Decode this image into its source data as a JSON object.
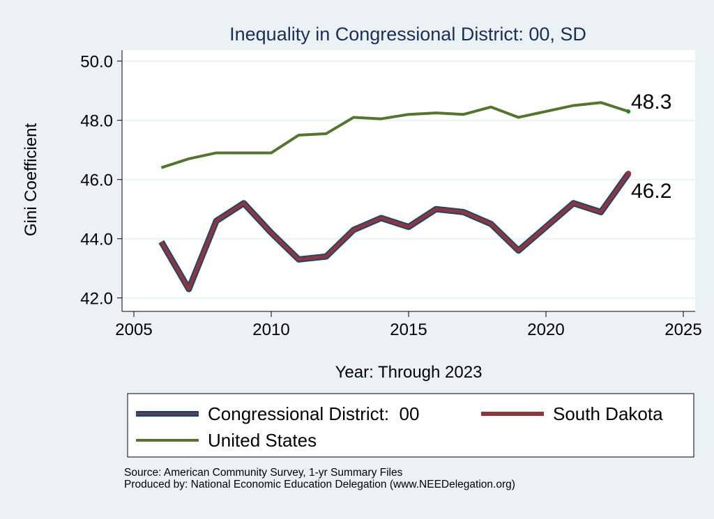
{
  "chart_data": {
    "type": "line",
    "title": "Inequality in Congressional District:  00, SD",
    "xlabel": "Year: Through 2023",
    "ylabel": "Gini Coefficient",
    "xlim": [
      2005,
      2025
    ],
    "ylim": [
      42,
      50
    ],
    "xticks": [
      "2005",
      "2010",
      "2015",
      "2020",
      "2025"
    ],
    "yticks": [
      "42.0",
      "44.0",
      "46.0",
      "48.0",
      "50.0"
    ],
    "grid": true,
    "legend_position": "bottom",
    "x": [
      2006,
      2007,
      2008,
      2009,
      2010,
      2011,
      2012,
      2013,
      2014,
      2015,
      2016,
      2017,
      2018,
      2019,
      2020,
      2021,
      2022,
      2023
    ],
    "series": [
      {
        "name": "Congressional District:  00",
        "color": "#1a476f",
        "values": [
          43.9,
          42.3,
          44.6,
          45.2,
          44.2,
          43.3,
          43.4,
          44.3,
          44.7,
          44.4,
          45.0,
          44.9,
          44.5,
          43.6,
          44.4,
          45.2,
          44.9,
          46.2
        ]
      },
      {
        "name": "South Dakota",
        "color": "#90353b",
        "values": [
          43.9,
          42.3,
          44.6,
          45.2,
          44.2,
          43.3,
          43.4,
          44.3,
          44.7,
          44.4,
          45.0,
          44.9,
          44.5,
          43.6,
          44.4,
          45.2,
          44.9,
          46.2
        ]
      },
      {
        "name": "United States",
        "color": "#55752f",
        "values": [
          46.4,
          46.7,
          46.9,
          46.9,
          46.9,
          47.5,
          47.55,
          48.1,
          48.05,
          48.2,
          48.25,
          48.2,
          48.45,
          48.1,
          48.3,
          48.5,
          48.6,
          48.3
        ]
      }
    ],
    "annotations": [
      "48.3",
      "46.2"
    ]
  },
  "footer": {
    "source": "Source: American Community Survey, 1-yr Summary Files",
    "produced": "Produced by: National Economic Education Delegation (www.NEEDelegation.org)"
  }
}
